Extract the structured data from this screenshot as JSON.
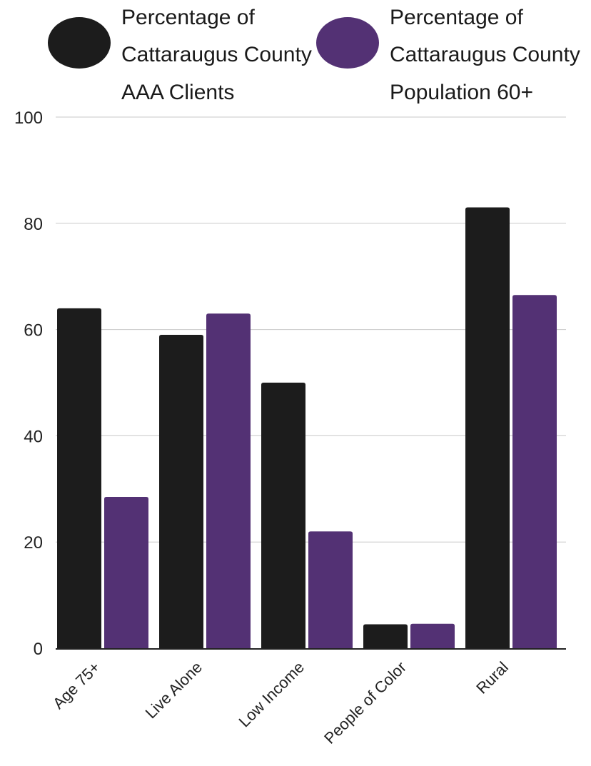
{
  "chart_data": {
    "type": "bar",
    "categories": [
      "Age 75+",
      "Live Alone",
      "Low Income",
      "People of Color",
      "Rural"
    ],
    "series": [
      {
        "name": "Percentage of Cattaraugus County AAA Clients",
        "legend_lines": [
          "Percentage of",
          "Cattaraugus County",
          "AAA Clients"
        ],
        "color": "#1c1c1c",
        "values": [
          64,
          59,
          50,
          4.5,
          83
        ]
      },
      {
        "name": "Percentage of Cattaraugus County Population 60+",
        "legend_lines": [
          "Percentage of",
          "Cattaraugus County",
          "Population 60+"
        ],
        "color": "#533174",
        "values": [
          28.5,
          63,
          22,
          4.6,
          66.5
        ]
      }
    ],
    "y_ticks": [
      "0",
      "20",
      "40",
      "60",
      "80",
      "100"
    ],
    "ylim": [
      0,
      100
    ],
    "grid": true,
    "legend_position": "top",
    "title": "",
    "xlabel": "",
    "ylabel": ""
  }
}
